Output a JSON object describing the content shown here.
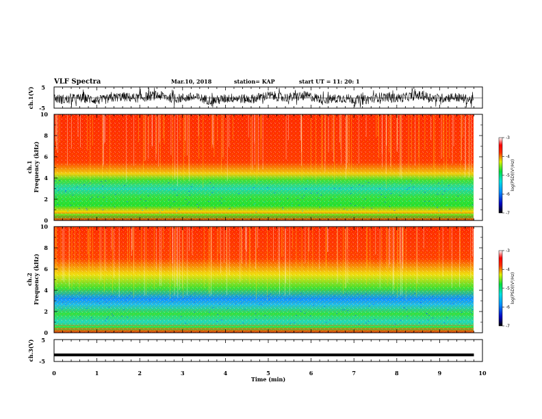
{
  "header": {
    "title": "VLF Spectra",
    "date": "Mar.10, 2018",
    "station": "station= KAP",
    "start": "start  UT =   11: 20: 1"
  },
  "colors": {
    "spec_high": "#ff2a00",
    "spec_mid": "#f0e010",
    "spec_low": "#10e030",
    "spec_deep": "#1090ff"
  },
  "chart_data": [
    {
      "type": "line",
      "panel": "ch1-waveform",
      "ylabel": "ch.1(V)",
      "ylim": [
        -5,
        5
      ],
      "yticks": [
        "5",
        "-5"
      ],
      "xlim": [
        0,
        10
      ]
    },
    {
      "type": "heatmap",
      "panel": "ch1-spectrogram",
      "ylabel_line1": "ch.1",
      "ylabel_line2": "Frequency (kHz)",
      "ylim": [
        0,
        10
      ],
      "yticks": [
        "0",
        "2",
        "4",
        "6",
        "8",
        "10"
      ],
      "xlim": [
        0,
        10
      ],
      "colorbar": {
        "label": "log(PSD)(V²/Hz)",
        "ticks": [
          "-3",
          "-4",
          "-5",
          "-6",
          "-7"
        ],
        "range": [
          -7,
          -3
        ]
      }
    },
    {
      "type": "heatmap",
      "panel": "ch2-spectrogram",
      "ylabel_line1": "ch.2",
      "ylabel_line2": "Frequency (kHz)",
      "ylim": [
        0,
        10
      ],
      "yticks": [
        "0",
        "2",
        "4",
        "6",
        "8",
        "10"
      ],
      "xlim": [
        0,
        10
      ],
      "colorbar": {
        "label": "log(PSD)(V²/Hz)",
        "ticks": [
          "-3",
          "-4",
          "-5",
          "-6",
          "-7"
        ],
        "range": [
          -7,
          -3
        ]
      }
    },
    {
      "type": "line",
      "panel": "ch3-waveform",
      "ylabel": "ch.3(V)",
      "ylim": [
        -5,
        5
      ],
      "yticks": [
        "5",
        "-5"
      ],
      "xlim": [
        0,
        10
      ],
      "x": [
        0,
        9.8
      ],
      "values": [
        -2,
        -2
      ]
    }
  ],
  "xaxis": {
    "label": "Time (min)",
    "ticks": [
      "0",
      "1",
      "2",
      "3",
      "4",
      "5",
      "6",
      "7",
      "8",
      "9",
      "10"
    ]
  }
}
